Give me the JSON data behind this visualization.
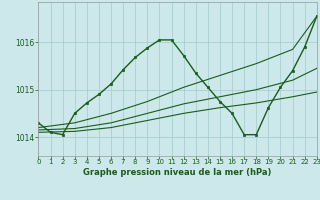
{
  "background_color": "#cce8ea",
  "grid_color": "#aacfd2",
  "line_color": "#1a5c1a",
  "title": "Graphe pression niveau de la mer (hPa)",
  "xlim": [
    0,
    23
  ],
  "ylim": [
    1013.6,
    1016.85
  ],
  "yticks": [
    1014,
    1015,
    1016
  ],
  "xticks": [
    0,
    1,
    2,
    3,
    4,
    5,
    6,
    7,
    8,
    9,
    10,
    11,
    12,
    13,
    14,
    15,
    16,
    17,
    18,
    19,
    20,
    21,
    22,
    23
  ],
  "series": [
    {
      "x": [
        0,
        3,
        6,
        9,
        12,
        15,
        18,
        21,
        23
      ],
      "y": [
        1014.2,
        1014.3,
        1014.5,
        1014.75,
        1015.05,
        1015.3,
        1015.55,
        1015.85,
        1016.55
      ],
      "marker": false,
      "lw": 0.8
    },
    {
      "x": [
        0,
        3,
        6,
        9,
        12,
        15,
        18,
        21,
        23
      ],
      "y": [
        1014.15,
        1014.18,
        1014.3,
        1014.5,
        1014.7,
        1014.85,
        1015.0,
        1015.2,
        1015.45
      ],
      "marker": false,
      "lw": 0.8
    },
    {
      "x": [
        0,
        3,
        6,
        9,
        12,
        15,
        18,
        21,
        23
      ],
      "y": [
        1014.1,
        1014.12,
        1014.2,
        1014.35,
        1014.5,
        1014.62,
        1014.72,
        1014.85,
        1014.95
      ],
      "marker": false,
      "lw": 0.8
    },
    {
      "x": [
        0,
        1,
        2,
        3,
        4,
        5,
        6,
        7,
        8,
        9,
        10,
        11,
        12,
        13,
        14,
        15,
        16,
        17,
        18,
        19,
        20,
        21,
        22,
        23
      ],
      "y": [
        1014.3,
        1014.1,
        1014.05,
        1014.5,
        1014.72,
        1014.9,
        1015.12,
        1015.42,
        1015.68,
        1015.88,
        1016.05,
        1016.05,
        1015.72,
        1015.35,
        1015.05,
        1014.75,
        1014.5,
        1014.05,
        1014.05,
        1014.62,
        1015.05,
        1015.4,
        1015.9,
        1016.55
      ],
      "marker": true,
      "lw": 1.0
    }
  ]
}
